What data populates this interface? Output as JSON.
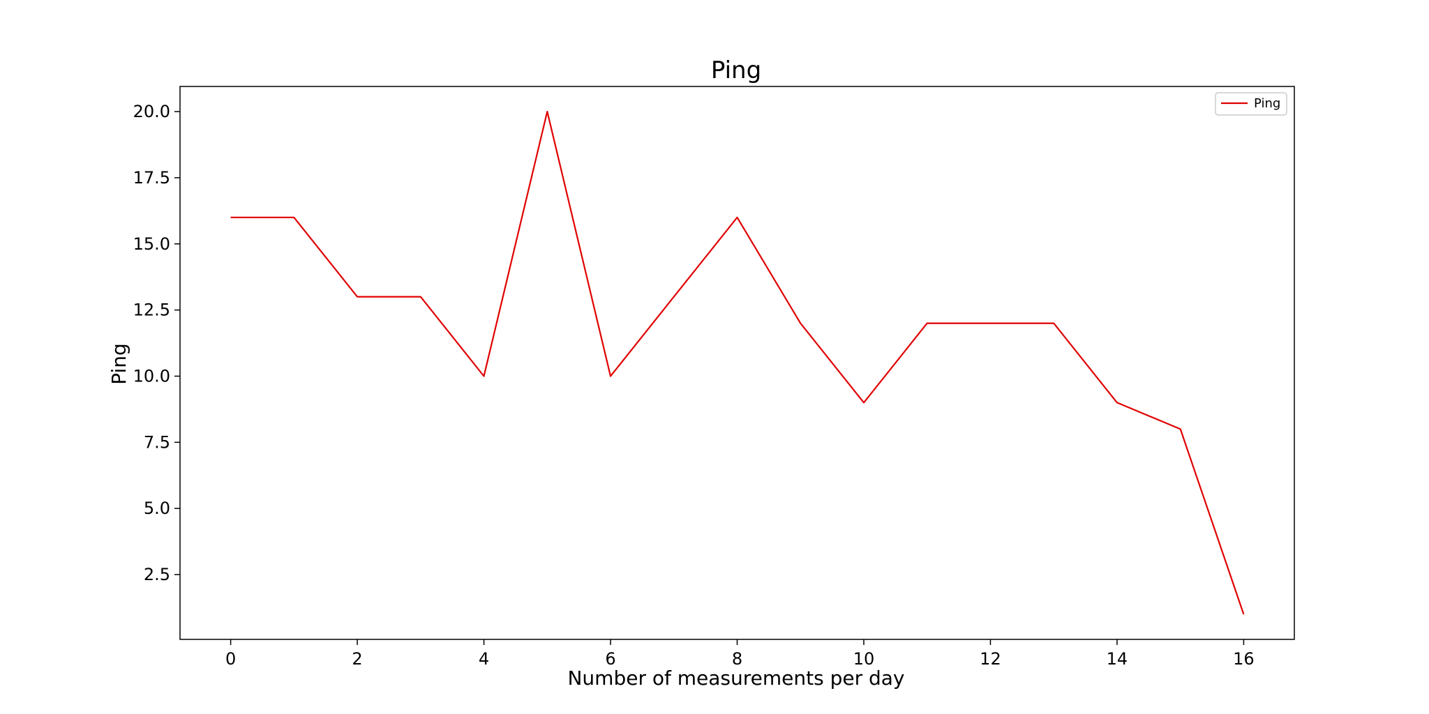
{
  "chart_data": {
    "type": "line",
    "title": "Ping",
    "xlabel": "Number of measurements per day",
    "ylabel": "Ping",
    "x": [
      0,
      1,
      2,
      3,
      4,
      5,
      6,
      7,
      8,
      9,
      10,
      11,
      12,
      13,
      14,
      15,
      16
    ],
    "series": [
      {
        "name": "Ping",
        "color": "#e00000",
        "values": [
          16,
          16,
          13,
          13,
          10,
          20,
          10,
          13,
          16,
          12,
          9,
          12,
          12,
          12,
          9,
          8,
          1
        ]
      }
    ],
    "xlim": [
      -0.8,
      16.8
    ],
    "ylim": [
      0.05,
      20.95
    ],
    "xticks": [
      0,
      2,
      4,
      6,
      8,
      10,
      12,
      14,
      16
    ],
    "xtick_labels": [
      "0",
      "2",
      "4",
      "6",
      "8",
      "10",
      "12",
      "14",
      "16"
    ],
    "yticks": [
      2.5,
      5.0,
      7.5,
      10.0,
      12.5,
      15.0,
      17.5,
      20.0
    ],
    "ytick_labels": [
      "2.5",
      "5.0",
      "7.5",
      "10.0",
      "12.5",
      "15.0",
      "17.5",
      "20.0"
    ],
    "grid": false,
    "legend_position": "top-right"
  }
}
